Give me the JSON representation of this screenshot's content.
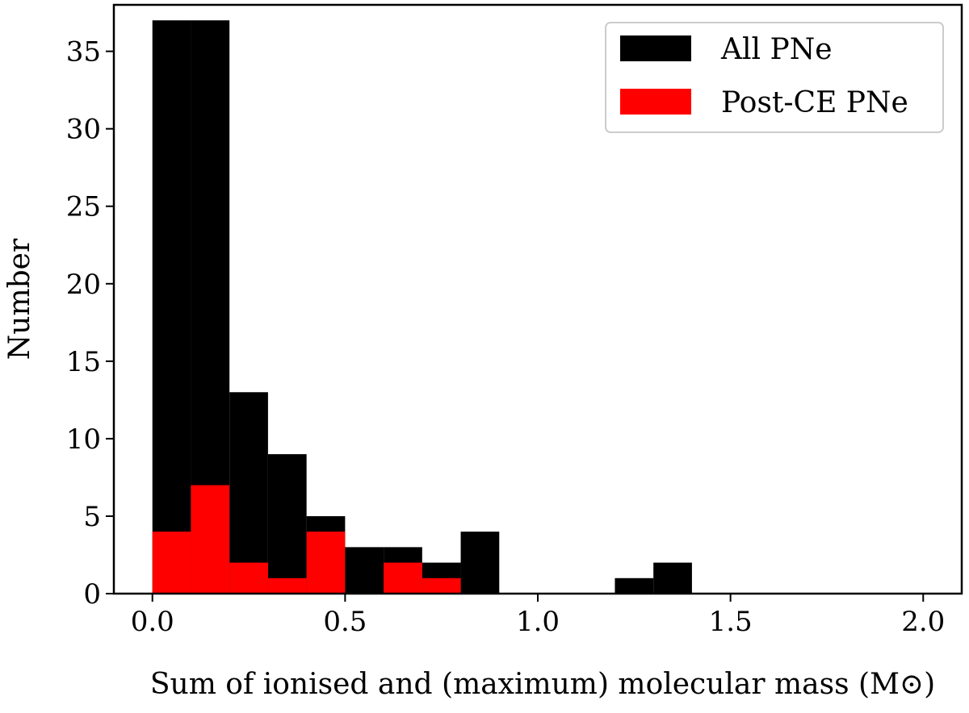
{
  "chart_data": {
    "type": "bar",
    "xlabel": "Sum of ionised and (maximum) molecular mass (M⊙)",
    "ylabel": "Number",
    "xlim": [
      -0.1,
      2.1
    ],
    "ylim": [
      0,
      38
    ],
    "xticks": [
      "0.0",
      "0.5",
      "1.0",
      "1.5",
      "2.0"
    ],
    "yticks": [
      "0",
      "5",
      "10",
      "15",
      "20",
      "25",
      "30",
      "35"
    ],
    "legend_position": "top-right",
    "grid": false,
    "bin_edges": [
      0.0,
      0.1,
      0.2,
      0.3,
      0.4,
      0.5,
      0.6,
      0.7,
      0.8,
      0.9,
      1.0,
      1.1,
      1.2,
      1.3,
      1.4,
      1.5,
      1.6,
      1.7,
      1.8,
      1.9,
      2.0
    ],
    "series": [
      {
        "name": "All PNe",
        "color": "#000000",
        "values": [
          37,
          37,
          13,
          9,
          5,
          3,
          3,
          2,
          4,
          0,
          0,
          0,
          1,
          2,
          0,
          0,
          0,
          0,
          0,
          0
        ]
      },
      {
        "name": "Post-CE PNe",
        "color": "#ff0000",
        "values": [
          4,
          7,
          2,
          1,
          4,
          0,
          2,
          1,
          0,
          0,
          0,
          0,
          0,
          0,
          0,
          0,
          0,
          0,
          0,
          0
        ]
      }
    ]
  }
}
